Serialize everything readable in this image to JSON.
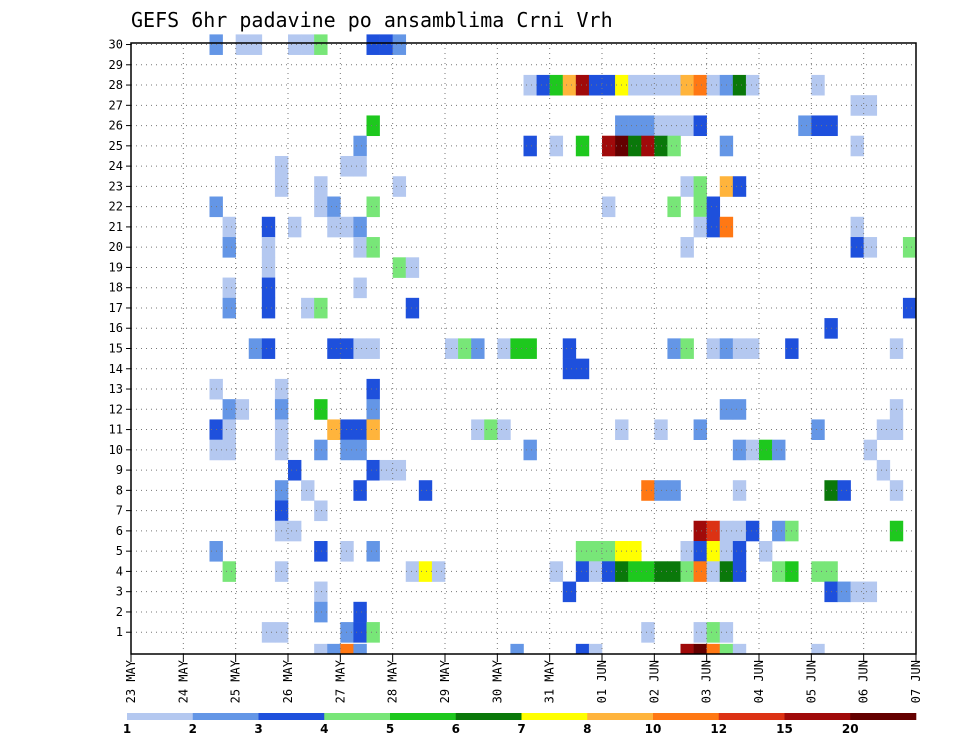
{
  "chart_data": {
    "type": "heatmap",
    "title": "GEFS 6hr padavine po ansamblima Crni Vrh",
    "ylim": [
      0,
      30
    ],
    "y_ticks": [
      "1",
      "2",
      "3",
      "4",
      "5",
      "6",
      "7",
      "8",
      "9",
      "10",
      "11",
      "12",
      "13",
      "14",
      "15",
      "16",
      "17",
      "18",
      "19",
      "20",
      "21",
      "22",
      "23",
      "24",
      "25",
      "26",
      "27",
      "28",
      "29",
      "30"
    ],
    "x_ticks": [
      "23 MAY",
      "24 MAY",
      "25 MAY",
      "26 MAY",
      "27 MAY",
      "28 MAY",
      "29 MAY",
      "30 MAY",
      "31 MAY",
      "01 JUN",
      "02 JUN",
      "03 JUN",
      "04 JUN",
      "05 JUN",
      "06 JUN",
      "07 JUN"
    ],
    "x_steps_per_day": 4,
    "x_total_steps": 60,
    "grid": true,
    "colorbar": {
      "labels": [
        "1",
        "2",
        "3",
        "4",
        "5",
        "6",
        "7",
        "8",
        "10",
        "12",
        "15",
        "20"
      ],
      "colors": [
        "#b4c8f0",
        "#6496e6",
        "#1e50dc",
        "#78e678",
        "#1ec81e",
        "#0a780a",
        "#ffff00",
        "#ffb43c",
        "#ff7814",
        "#dc3214",
        "#a00a0a",
        "#640000"
      ]
    },
    "cells": [
      [
        7,
        30,
        2
      ],
      [
        9,
        30,
        1
      ],
      [
        10,
        30,
        1
      ],
      [
        13,
        30,
        1
      ],
      [
        14,
        30,
        1
      ],
      [
        15,
        30,
        4
      ],
      [
        19,
        30,
        3
      ],
      [
        20,
        30,
        3
      ],
      [
        21,
        30,
        2
      ],
      [
        31,
        28,
        1
      ],
      [
        32,
        28,
        3
      ],
      [
        33,
        28,
        5
      ],
      [
        34,
        28,
        8
      ],
      [
        35,
        28,
        11
      ],
      [
        36,
        28,
        3
      ],
      [
        37,
        28,
        3
      ],
      [
        38,
        28,
        7
      ],
      [
        39,
        28,
        1
      ],
      [
        40,
        28,
        1
      ],
      [
        41,
        28,
        1
      ],
      [
        42,
        28,
        1
      ],
      [
        43,
        28,
        8
      ],
      [
        44,
        28,
        9
      ],
      [
        45,
        28,
        1
      ],
      [
        46,
        28,
        2
      ],
      [
        47,
        28,
        6
      ],
      [
        48,
        28,
        1
      ],
      [
        53,
        28,
        1
      ],
      [
        56,
        27,
        1
      ],
      [
        57,
        27,
        1
      ],
      [
        19,
        26,
        5
      ],
      [
        38,
        26,
        2
      ],
      [
        39,
        26,
        2
      ],
      [
        40,
        26,
        2
      ],
      [
        41,
        26,
        1
      ],
      [
        42,
        26,
        1
      ],
      [
        43,
        26,
        1
      ],
      [
        44,
        26,
        3
      ],
      [
        52,
        26,
        2
      ],
      [
        53,
        26,
        3
      ],
      [
        54,
        26,
        3
      ],
      [
        18,
        25,
        2
      ],
      [
        31,
        25,
        3
      ],
      [
        33,
        25,
        1
      ],
      [
        35,
        25,
        5
      ],
      [
        37,
        25,
        11
      ],
      [
        38,
        25,
        12
      ],
      [
        39,
        25,
        6
      ],
      [
        40,
        25,
        11
      ],
      [
        41,
        25,
        6
      ],
      [
        42,
        25,
        4
      ],
      [
        46,
        25,
        2
      ],
      [
        56,
        25,
        1
      ],
      [
        12,
        24,
        1
      ],
      [
        17,
        24,
        1
      ],
      [
        18,
        24,
        1
      ],
      [
        12,
        23,
        1
      ],
      [
        15,
        23,
        1
      ],
      [
        21,
        23,
        1
      ],
      [
        43,
        23,
        1
      ],
      [
        44,
        23,
        4
      ],
      [
        46,
        23,
        8
      ],
      [
        47,
        23,
        3
      ],
      [
        7,
        22,
        2
      ],
      [
        15,
        22,
        1
      ],
      [
        16,
        22,
        2
      ],
      [
        19,
        22,
        4
      ],
      [
        37,
        22,
        1
      ],
      [
        42,
        22,
        4
      ],
      [
        44,
        22,
        4
      ],
      [
        45,
        22,
        3
      ],
      [
        8,
        21,
        1
      ],
      [
        11,
        21,
        3
      ],
      [
        13,
        21,
        1
      ],
      [
        16,
        21,
        1
      ],
      [
        17,
        21,
        1
      ],
      [
        18,
        21,
        2
      ],
      [
        44,
        21,
        1
      ],
      [
        45,
        21,
        3
      ],
      [
        46,
        21,
        9
      ],
      [
        56,
        21,
        1
      ],
      [
        8,
        20,
        2
      ],
      [
        11,
        20,
        1
      ],
      [
        18,
        20,
        1
      ],
      [
        19,
        20,
        4
      ],
      [
        43,
        20,
        1
      ],
      [
        56,
        20,
        3
      ],
      [
        57,
        20,
        1
      ],
      [
        60,
        20,
        4
      ],
      [
        11,
        19,
        1
      ],
      [
        21,
        19,
        4
      ],
      [
        22,
        19,
        1
      ],
      [
        8,
        18,
        1
      ],
      [
        11,
        18,
        3
      ],
      [
        18,
        18,
        1
      ],
      [
        8,
        17,
        2
      ],
      [
        11,
        17,
        3
      ],
      [
        14,
        17,
        1
      ],
      [
        15,
        17,
        4
      ],
      [
        22,
        17,
        3
      ],
      [
        60,
        17,
        3
      ],
      [
        54,
        16,
        3
      ],
      [
        10,
        15,
        2
      ],
      [
        11,
        15,
        3
      ],
      [
        16,
        15,
        3
      ],
      [
        17,
        15,
        3
      ],
      [
        18,
        15,
        1
      ],
      [
        19,
        15,
        1
      ],
      [
        25,
        15,
        1
      ],
      [
        26,
        15,
        4
      ],
      [
        27,
        15,
        2
      ],
      [
        29,
        15,
        1
      ],
      [
        30,
        15,
        5
      ],
      [
        31,
        15,
        5
      ],
      [
        34,
        15,
        3
      ],
      [
        42,
        15,
        2
      ],
      [
        43,
        15,
        4
      ],
      [
        45,
        15,
        1
      ],
      [
        46,
        15,
        2
      ],
      [
        47,
        15,
        1
      ],
      [
        48,
        15,
        1
      ],
      [
        51,
        15,
        3
      ],
      [
        59,
        15,
        1
      ],
      [
        34,
        14,
        3
      ],
      [
        35,
        14,
        3
      ],
      [
        7,
        13,
        1
      ],
      [
        12,
        13,
        1
      ],
      [
        19,
        13,
        3
      ],
      [
        8,
        12,
        2
      ],
      [
        9,
        12,
        1
      ],
      [
        12,
        12,
        2
      ],
      [
        15,
        12,
        5
      ],
      [
        19,
        12,
        2
      ],
      [
        46,
        12,
        2
      ],
      [
        47,
        12,
        2
      ],
      [
        59,
        12,
        1
      ],
      [
        7,
        11,
        3
      ],
      [
        8,
        11,
        1
      ],
      [
        12,
        11,
        1
      ],
      [
        16,
        11,
        8
      ],
      [
        17,
        11,
        3
      ],
      [
        18,
        11,
        3
      ],
      [
        19,
        11,
        8
      ],
      [
        27,
        11,
        1
      ],
      [
        28,
        11,
        4
      ],
      [
        29,
        11,
        1
      ],
      [
        38,
        11,
        1
      ],
      [
        41,
        11,
        1
      ],
      [
        44,
        11,
        2
      ],
      [
        53,
        11,
        2
      ],
      [
        58,
        11,
        1
      ],
      [
        59,
        11,
        1
      ],
      [
        7,
        10,
        1
      ],
      [
        8,
        10,
        1
      ],
      [
        12,
        10,
        1
      ],
      [
        15,
        10,
        2
      ],
      [
        17,
        10,
        2
      ],
      [
        18,
        10,
        2
      ],
      [
        31,
        10,
        2
      ],
      [
        47,
        10,
        2
      ],
      [
        48,
        10,
        1
      ],
      [
        49,
        10,
        5
      ],
      [
        50,
        10,
        2
      ],
      [
        57,
        10,
        1
      ],
      [
        13,
        9,
        3
      ],
      [
        19,
        9,
        3
      ],
      [
        20,
        9,
        1
      ],
      [
        21,
        9,
        1
      ],
      [
        58,
        9,
        1
      ],
      [
        12,
        8,
        2
      ],
      [
        14,
        8,
        1
      ],
      [
        18,
        8,
        3
      ],
      [
        23,
        8,
        3
      ],
      [
        40,
        8,
        9
      ],
      [
        41,
        8,
        2
      ],
      [
        42,
        8,
        2
      ],
      [
        47,
        8,
        1
      ],
      [
        54,
        8,
        6
      ],
      [
        55,
        8,
        3
      ],
      [
        59,
        8,
        1
      ],
      [
        12,
        7,
        3
      ],
      [
        15,
        7,
        1
      ],
      [
        12,
        6,
        1
      ],
      [
        13,
        6,
        1
      ],
      [
        44,
        6,
        11
      ],
      [
        45,
        6,
        10
      ],
      [
        46,
        6,
        1
      ],
      [
        47,
        6,
        1
      ],
      [
        48,
        6,
        3
      ],
      [
        50,
        6,
        2
      ],
      [
        51,
        6,
        4
      ],
      [
        59,
        6,
        5
      ],
      [
        7,
        5,
        2
      ],
      [
        15,
        5,
        3
      ],
      [
        17,
        5,
        1
      ],
      [
        19,
        5,
        2
      ],
      [
        35,
        5,
        4
      ],
      [
        36,
        5,
        4
      ],
      [
        37,
        5,
        4
      ],
      [
        38,
        5,
        7
      ],
      [
        39,
        5,
        7
      ],
      [
        43,
        5,
        1
      ],
      [
        44,
        5,
        3
      ],
      [
        45,
        5,
        7
      ],
      [
        46,
        5,
        1
      ],
      [
        47,
        5,
        3
      ],
      [
        49,
        5,
        1
      ],
      [
        8,
        4,
        4
      ],
      [
        12,
        4,
        1
      ],
      [
        22,
        4,
        1
      ],
      [
        23,
        4,
        7
      ],
      [
        24,
        4,
        1
      ],
      [
        33,
        4,
        1
      ],
      [
        35,
        4,
        3
      ],
      [
        36,
        4,
        1
      ],
      [
        37,
        4,
        3
      ],
      [
        38,
        4,
        6
      ],
      [
        39,
        4,
        5
      ],
      [
        40,
        4,
        5
      ],
      [
        41,
        4,
        6
      ],
      [
        42,
        4,
        6
      ],
      [
        43,
        4,
        4
      ],
      [
        44,
        4,
        9
      ],
      [
        45,
        4,
        1
      ],
      [
        46,
        4,
        6
      ],
      [
        47,
        4,
        3
      ],
      [
        50,
        4,
        4
      ],
      [
        51,
        4,
        5
      ],
      [
        53,
        4,
        4
      ],
      [
        54,
        4,
        4
      ],
      [
        15,
        3,
        1
      ],
      [
        34,
        3,
        3
      ],
      [
        54,
        3,
        3
      ],
      [
        55,
        3,
        2
      ],
      [
        56,
        3,
        1
      ],
      [
        57,
        3,
        1
      ],
      [
        15,
        2,
        2
      ],
      [
        18,
        2,
        3
      ],
      [
        11,
        1,
        1
      ],
      [
        12,
        1,
        1
      ],
      [
        17,
        1,
        2
      ],
      [
        18,
        1,
        3
      ],
      [
        19,
        1,
        4
      ],
      [
        40,
        1,
        1
      ],
      [
        44,
        1,
        1
      ],
      [
        45,
        1,
        4
      ],
      [
        46,
        1,
        1
      ],
      [
        15,
        0,
        1
      ],
      [
        16,
        0,
        2
      ],
      [
        17,
        0,
        9
      ],
      [
        18,
        0,
        2
      ],
      [
        30,
        0,
        2
      ],
      [
        35,
        0,
        3
      ],
      [
        36,
        0,
        1
      ],
      [
        43,
        0,
        11
      ],
      [
        44,
        0,
        12
      ],
      [
        45,
        0,
        9
      ],
      [
        46,
        0,
        4
      ],
      [
        47,
        0,
        1
      ],
      [
        53,
        0,
        1
      ]
    ]
  }
}
